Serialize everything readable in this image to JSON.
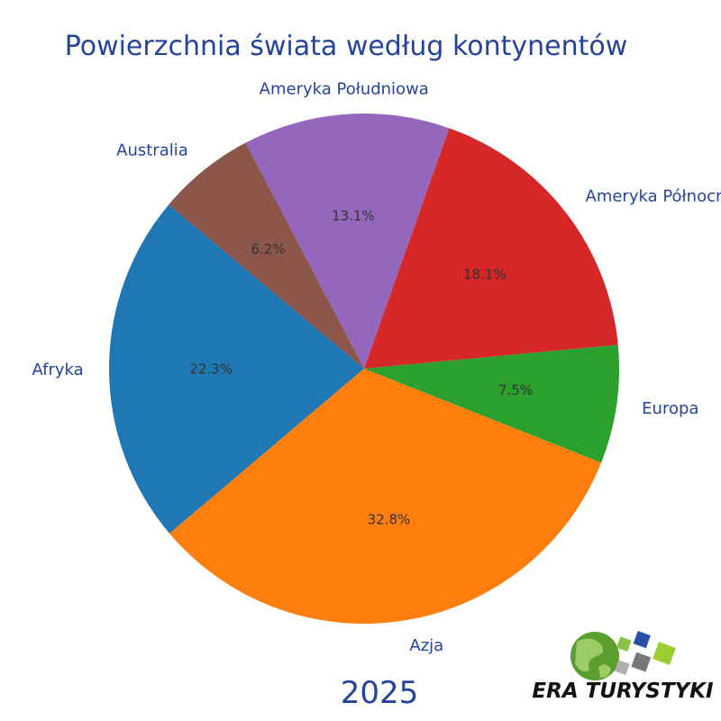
{
  "chart_data": {
    "type": "pie",
    "title": "Powierzchnia świata według kontynentów",
    "subtitle": "2025",
    "categories": [
      "Afryka",
      "Azja",
      "Europa",
      "Ameryka Północna",
      "Ameryka Południowa",
      "Australia"
    ],
    "values": [
      22.3,
      32.8,
      7.5,
      18.1,
      13.1,
      6.2
    ],
    "value_labels": [
      "22.3%",
      "32.8%",
      "7.5%",
      "18.1%",
      "13.1%",
      "6.2%"
    ],
    "colors": [
      "#1f77b4",
      "#ff7f0e",
      "#2ca02c",
      "#d62728",
      "#9467bd",
      "#8c564b"
    ],
    "start_angle_deg": 140,
    "direction": "counterclockwise",
    "legend": "none"
  },
  "logo": {
    "text": "ERA TURYSTYKI",
    "icon": "globe-with-squares-icon"
  }
}
